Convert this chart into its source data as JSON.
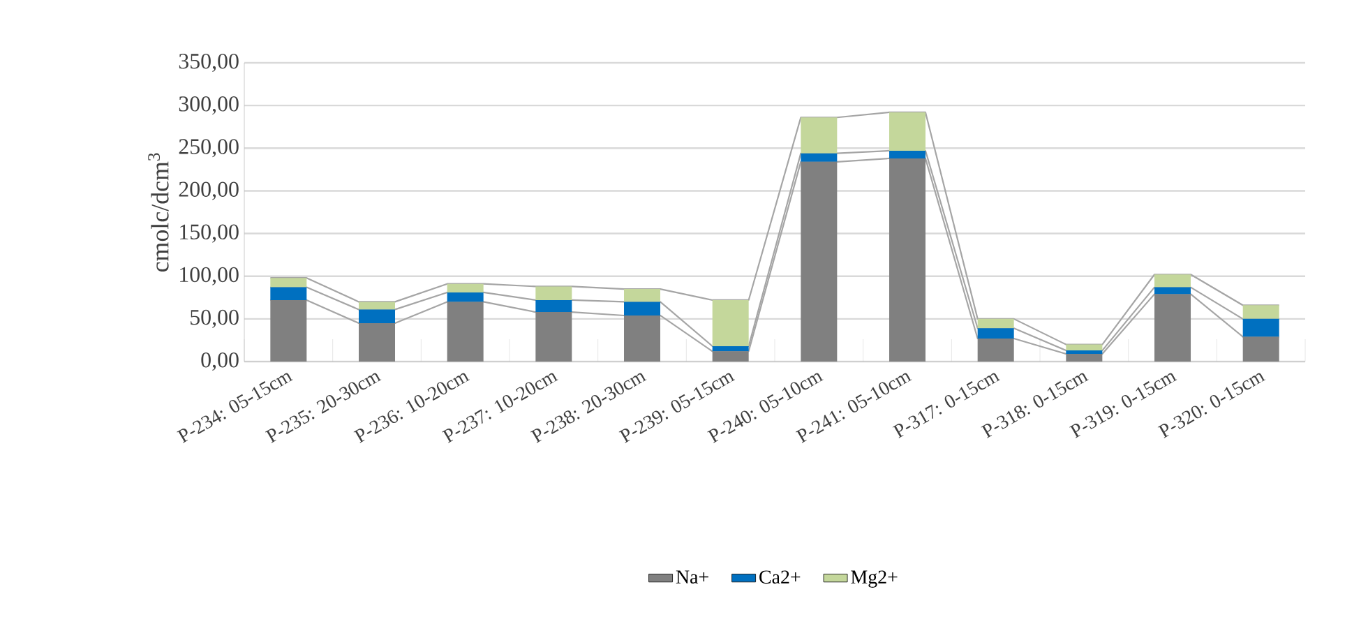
{
  "chart_data": {
    "type": "bar",
    "stacked": true,
    "ylabel": "cmolc/dcm$^{3}$",
    "categories": [
      "P-234: 05-15cm",
      "P-235: 20-30cm",
      "P-236: 10-20cm",
      "P-237: 10-20cm",
      "P-238: 20-30cm",
      "P-239: 05-15cm",
      "P-240: 05-10cm",
      "P-241: 05-10cm",
      "P-317: 0-15cm",
      "P-318: 0-15cm",
      "P-319: 0-15cm",
      "P-320: 0-15cm"
    ],
    "series": [
      {
        "name": "Na+",
        "color": "#808080",
        "values": [
          72,
          45,
          70,
          58,
          54,
          12,
          234,
          238,
          27,
          9,
          79,
          29
        ]
      },
      {
        "name": "Ca2+",
        "color": "#0070c0",
        "values": [
          15,
          16,
          11,
          14,
          16,
          6,
          10,
          9,
          12,
          4,
          8,
          21
        ]
      },
      {
        "name": "Mg2+",
        "color": "#c4d79b",
        "values": [
          11,
          9,
          10,
          16,
          15,
          54,
          42,
          45,
          11,
          7,
          15,
          16
        ]
      }
    ],
    "ylim": [
      0,
      350
    ],
    "yticks": [
      {
        "value": 0,
        "label": "0,00"
      },
      {
        "value": 50,
        "label": "50,00"
      },
      {
        "value": 100,
        "label": "100,00"
      },
      {
        "value": 150,
        "label": "150,00"
      },
      {
        "value": 200,
        "label": "200,00"
      },
      {
        "value": 250,
        "label": "250,00"
      },
      {
        "value": 300,
        "label": "300,00"
      },
      {
        "value": 350,
        "label": "350,00"
      }
    ],
    "grid": "y",
    "legend": "bottom"
  }
}
